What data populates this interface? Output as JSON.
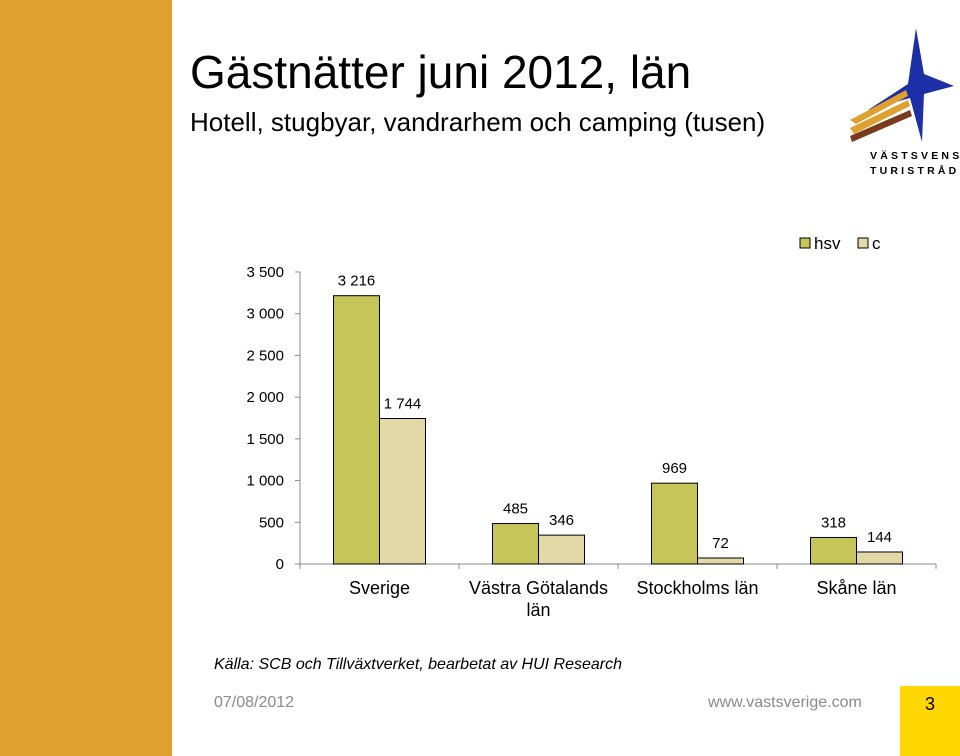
{
  "slide": {
    "title": "Gästnätter juni 2012, län",
    "subtitle": "Hotell, stugbyar, vandrarhem och camping (tusen)",
    "source": "Källa: SCB och Tillväxtverket, bearbetat av HUI Research",
    "date": "07/08/2012",
    "website": "www.vastsverige.com",
    "page_number": "3",
    "logo": {
      "line1": "VÄSTSVENSKA",
      "line2": "TURISTRÅDET",
      "icon": "star-compass-icon"
    }
  },
  "colors": {
    "accent_bar": "#e0a030",
    "hsv": "#c5c55a",
    "c": "#e3d9a6",
    "page_box": "#ffd700",
    "logo_blue": "#1c2fa6",
    "logo_orange": "#e0a030",
    "logo_brown": "#7a3b1c"
  },
  "chart_data": {
    "type": "bar",
    "categories": [
      [
        "Sverige"
      ],
      [
        "Västra Götalands",
        "län"
      ],
      [
        "Stockholms län"
      ],
      [
        "Skåne län"
      ]
    ],
    "series": [
      {
        "name": "hsv",
        "values": [
          3216,
          485,
          969,
          318
        ],
        "labels": [
          "3 216",
          "485",
          "969",
          "318"
        ]
      },
      {
        "name": "c",
        "values": [
          1744,
          346,
          72,
          144
        ],
        "labels": [
          "1 744",
          "346",
          "72",
          "144"
        ]
      }
    ],
    "ylim": [
      0,
      3500
    ],
    "yticks": [
      0,
      500,
      1000,
      1500,
      2000,
      2500,
      3000,
      3500
    ],
    "ytick_labels": [
      "0",
      "500",
      "1 000",
      "1 500",
      "2 000",
      "2 500",
      "3 000",
      "3 500"
    ],
    "legend_position": "top-right",
    "grid": false
  }
}
